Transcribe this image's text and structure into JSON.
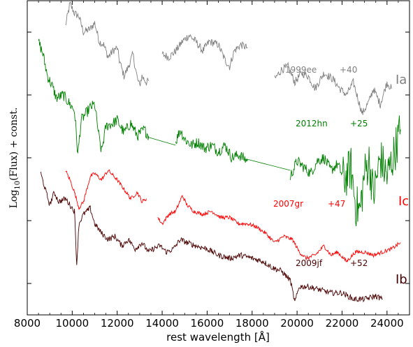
{
  "chart_data": {
    "type": "line",
    "xlabel": "rest wavelength [Å]",
    "ylabel_main": "Log",
    "ylabel_sub": "10",
    "ylabel_rest": "(Flux) + const.",
    "xlim": [
      8000,
      25000
    ],
    "ylim": [
      0,
      10
    ],
    "x_ticks": [
      8000,
      10000,
      12000,
      14000,
      16000,
      18000,
      20000,
      22000,
      24000
    ],
    "x_tick_labels": [
      "8000",
      "10000",
      "12000",
      "14000",
      "16000",
      "18000",
      "20000",
      "22000",
      "24000"
    ],
    "y_tick_values": [
      1,
      3,
      5,
      7,
      9
    ],
    "grid": false,
    "series": [
      {
        "label_name": "1999ee",
        "label_phase": "+40",
        "type_label": "Ia",
        "color": "#808080",
        "noise": 0.25,
        "segments": [
          [
            [
              9700,
              9.2
            ],
            [
              9900,
              9.9
            ],
            [
              10100,
              9.6
            ],
            [
              10300,
              9.5
            ],
            [
              10500,
              9.0
            ],
            [
              10800,
              9.1
            ],
            [
              11000,
              9.3
            ],
            [
              11200,
              8.7
            ],
            [
              11400,
              8.6
            ],
            [
              11600,
              8.2
            ],
            [
              11800,
              8.4
            ],
            [
              12000,
              8.5
            ],
            [
              12100,
              8.1
            ],
            [
              12300,
              7.6
            ],
            [
              12500,
              7.9
            ],
            [
              12700,
              8.3
            ],
            [
              12900,
              7.5
            ],
            [
              13000,
              7.3
            ],
            [
              13100,
              7.6
            ],
            [
              13300,
              7.4
            ],
            [
              13400,
              7.45
            ]
          ],
          [
            [
              14000,
              8.3
            ],
            [
              14300,
              8.2
            ],
            [
              14600,
              8.4
            ],
            [
              14900,
              8.7
            ],
            [
              15200,
              8.9
            ],
            [
              15500,
              8.7
            ],
            [
              15800,
              8.4
            ],
            [
              16100,
              8.7
            ],
            [
              16500,
              8.6
            ],
            [
              16800,
              8.1
            ],
            [
              17000,
              7.9
            ],
            [
              17200,
              8.4
            ],
            [
              17500,
              8.6
            ],
            [
              17800,
              8.5
            ]
          ],
          [
            [
              19000,
              7.5
            ],
            [
              19300,
              7.8
            ],
            [
              19600,
              7.9
            ],
            [
              19900,
              7.4
            ],
            [
              20200,
              7.7
            ],
            [
              20500,
              7.6
            ],
            [
              20800,
              7.2
            ],
            [
              21200,
              7.7
            ],
            [
              21600,
              7.5
            ],
            [
              21900,
              7.2
            ],
            [
              22200,
              7.0
            ],
            [
              22500,
              7.4
            ],
            [
              22700,
              6.9
            ],
            [
              22900,
              6.4
            ],
            [
              23200,
              6.8
            ],
            [
              23400,
              7.2
            ],
            [
              23700,
              6.7
            ],
            [
              24000,
              7.4
            ],
            [
              24200,
              7.2
            ]
          ]
        ]
      },
      {
        "label_name": "2012hn",
        "label_phase": "+25",
        "type_label": "",
        "color": "#008000",
        "noise": 0.35,
        "segments": [
          [
            [
              8500,
              8.7
            ],
            [
              8700,
              8.3
            ],
            [
              8900,
              7.6
            ],
            [
              9100,
              7.3
            ],
            [
              9300,
              6.9
            ],
            [
              9600,
              7.0
            ],
            [
              9900,
              6.7
            ],
            [
              10100,
              6.5
            ],
            [
              10250,
              5.1
            ],
            [
              10400,
              6.2
            ],
            [
              10600,
              6.4
            ],
            [
              10800,
              6.6
            ],
            [
              11000,
              6.7
            ],
            [
              11200,
              5.6
            ],
            [
              11300,
              5.2
            ],
            [
              11500,
              6.0
            ],
            [
              11800,
              6.1
            ],
            [
              12000,
              6.2
            ],
            [
              12300,
              5.8
            ],
            [
              12600,
              6.1
            ],
            [
              12900,
              5.7
            ],
            [
              13200,
              5.9
            ],
            [
              13400,
              5.7
            ]
          ],
          [
            [
              13400,
              5.65
            ],
            [
              14600,
              5.4
            ]
          ],
          [
            [
              14600,
              5.5
            ],
            [
              14800,
              5.9
            ],
            [
              15000,
              5.6
            ],
            [
              15300,
              5.4
            ],
            [
              15600,
              5.5
            ],
            [
              15900,
              5.3
            ],
            [
              16200,
              5.4
            ],
            [
              16500,
              5.2
            ],
            [
              16800,
              5.4
            ],
            [
              17100,
              5.0
            ],
            [
              17400,
              5.1
            ],
            [
              17800,
              4.9
            ]
          ],
          [
            [
              17800,
              4.95
            ],
            [
              19700,
              4.6
            ]
          ],
          [
            [
              19700,
              4.4
            ],
            [
              20000,
              4.9
            ],
            [
              20300,
              4.7
            ],
            [
              20600,
              4.5
            ],
            [
              20900,
              4.9
            ],
            [
              21200,
              5.0
            ],
            [
              21500,
              4.6
            ],
            [
              21800,
              4.8
            ],
            [
              22100,
              4.3
            ],
            [
              22400,
              4.7
            ],
            [
              22600,
              3.5
            ],
            [
              22800,
              3.3
            ],
            [
              23000,
              4.5
            ],
            [
              23200,
              4.9
            ],
            [
              23400,
              3.8
            ],
            [
              23700,
              5.0
            ],
            [
              24000,
              4.4
            ],
            [
              24300,
              5.1
            ],
            [
              24600,
              5.9
            ]
          ]
        ]
      },
      {
        "label_name": "2007gr",
        "label_phase": "+47",
        "type_label": "Ic",
        "color": "#ff0000",
        "noise": 0.12,
        "segments": [
          [
            [
              9700,
              4.6
            ],
            [
              9900,
              4.3
            ],
            [
              10100,
              3.9
            ],
            [
              10300,
              3.4
            ],
            [
              10500,
              3.6
            ],
            [
              10800,
              4.4
            ],
            [
              11000,
              4.5
            ],
            [
              11300,
              4.3
            ],
            [
              11600,
              4.6
            ],
            [
              12000,
              4.3
            ],
            [
              12300,
              4.0
            ],
            [
              12600,
              3.7
            ],
            [
              12900,
              3.9
            ],
            [
              13100,
              3.6
            ],
            [
              13300,
              3.7
            ]
          ],
          [
            [
              13800,
              3.1
            ],
            [
              14000,
              2.9
            ],
            [
              14300,
              3.2
            ],
            [
              14600,
              3.3
            ],
            [
              14900,
              3.8
            ],
            [
              15100,
              3.5
            ],
            [
              15400,
              3.3
            ],
            [
              15800,
              3.2
            ],
            [
              16200,
              3.3
            ],
            [
              16600,
              3.1
            ],
            [
              17000,
              3.1
            ],
            [
              17400,
              2.9
            ],
            [
              17800,
              2.9
            ],
            [
              18200,
              2.8
            ],
            [
              18600,
              2.6
            ],
            [
              19000,
              2.3
            ],
            [
              19400,
              2.5
            ],
            [
              19800,
              2.4
            ],
            [
              20100,
              2.0
            ],
            [
              20400,
              1.8
            ],
            [
              20800,
              1.9
            ],
            [
              21200,
              2.2
            ],
            [
              21500,
              1.9
            ],
            [
              21800,
              2.0
            ],
            [
              22200,
              1.7
            ],
            [
              22600,
              2.0
            ],
            [
              23000,
              2.0
            ],
            [
              23400,
              1.9
            ],
            [
              23800,
              2.0
            ],
            [
              24200,
              2.1
            ],
            [
              24600,
              2.3
            ]
          ]
        ]
      },
      {
        "label_name": "2009jf",
        "label_phase": "+52",
        "type_label": "Ib",
        "color": "#4a0000",
        "noise": 0.18,
        "segments": [
          [
            [
              8600,
              4.5
            ],
            [
              8800,
              4.0
            ],
            [
              9000,
              3.5
            ],
            [
              9200,
              3.9
            ],
            [
              9400,
              3.6
            ],
            [
              9700,
              3.7
            ],
            [
              9900,
              3.5
            ],
            [
              10100,
              3.3
            ],
            [
              10200,
              1.6
            ],
            [
              10300,
              2.9
            ],
            [
              10500,
              3.2
            ],
            [
              10800,
              3.4
            ],
            [
              11000,
              2.9
            ],
            [
              11300,
              2.6
            ],
            [
              11600,
              2.4
            ],
            [
              11900,
              2.5
            ],
            [
              12200,
              2.2
            ],
            [
              12500,
              2.4
            ],
            [
              12800,
              2.1
            ],
            [
              13100,
              2.3
            ],
            [
              13400,
              2.0
            ],
            [
              13600,
              2.1
            ],
            [
              13900,
              2.2
            ],
            [
              14200,
              2.0
            ],
            [
              14500,
              2.1
            ],
            [
              14800,
              2.4
            ],
            [
              15100,
              2.3
            ],
            [
              15500,
              2.2
            ],
            [
              16000,
              2.1
            ],
            [
              16500,
              1.9
            ],
            [
              17000,
              1.8
            ],
            [
              17500,
              1.9
            ],
            [
              18000,
              1.8
            ],
            [
              18500,
              1.7
            ],
            [
              18900,
              1.5
            ],
            [
              19300,
              1.4
            ],
            [
              19700,
              1.1
            ],
            [
              19900,
              0.4
            ],
            [
              20100,
              0.9
            ],
            [
              20500,
              0.9
            ],
            [
              21000,
              0.8
            ],
            [
              21500,
              0.7
            ],
            [
              22000,
              0.7
            ],
            [
              22500,
              0.5
            ],
            [
              23000,
              0.5
            ],
            [
              23500,
              0.6
            ],
            [
              23800,
              0.5
            ]
          ]
        ]
      }
    ]
  }
}
